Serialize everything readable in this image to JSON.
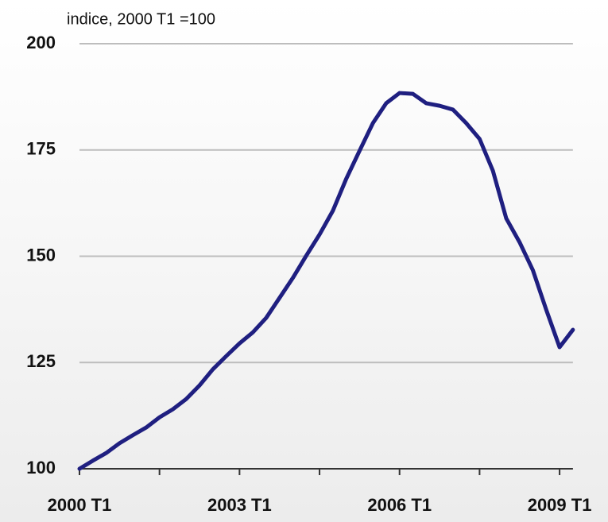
{
  "chart_data": {
    "type": "line",
    "title": "indice, 2000 T1 =100",
    "categories": [
      "2000 T1",
      null,
      null,
      null,
      null,
      null,
      null,
      null,
      null,
      null,
      null,
      null,
      "2003 T1",
      null,
      null,
      null,
      null,
      null,
      null,
      null,
      null,
      null,
      null,
      null,
      "2006 T1",
      null,
      null,
      null,
      null,
      null,
      null,
      null,
      null,
      null,
      null,
      null,
      "2009 T1",
      null
    ],
    "series": [
      {
        "name": "indice",
        "color": "#1f1f80",
        "values": [
          100,
          101.9,
          103.7,
          106,
          107.9,
          109.7,
          112.1,
          114,
          116.4,
          119.6,
          123.4,
          126.5,
          129.5,
          132.1,
          135.5,
          140.2,
          144.9,
          150.1,
          155.1,
          160.7,
          168.2,
          174.8,
          181.3,
          186,
          188.4,
          188.2,
          186,
          185.4,
          184.5,
          181.3,
          177.6,
          170.1,
          158.9,
          153.3,
          146.7,
          137.4,
          128.6,
          132.7
        ]
      }
    ],
    "ylim": [
      100,
      200
    ],
    "yticks": [
      100,
      125,
      150,
      175,
      200
    ],
    "grid": true
  }
}
